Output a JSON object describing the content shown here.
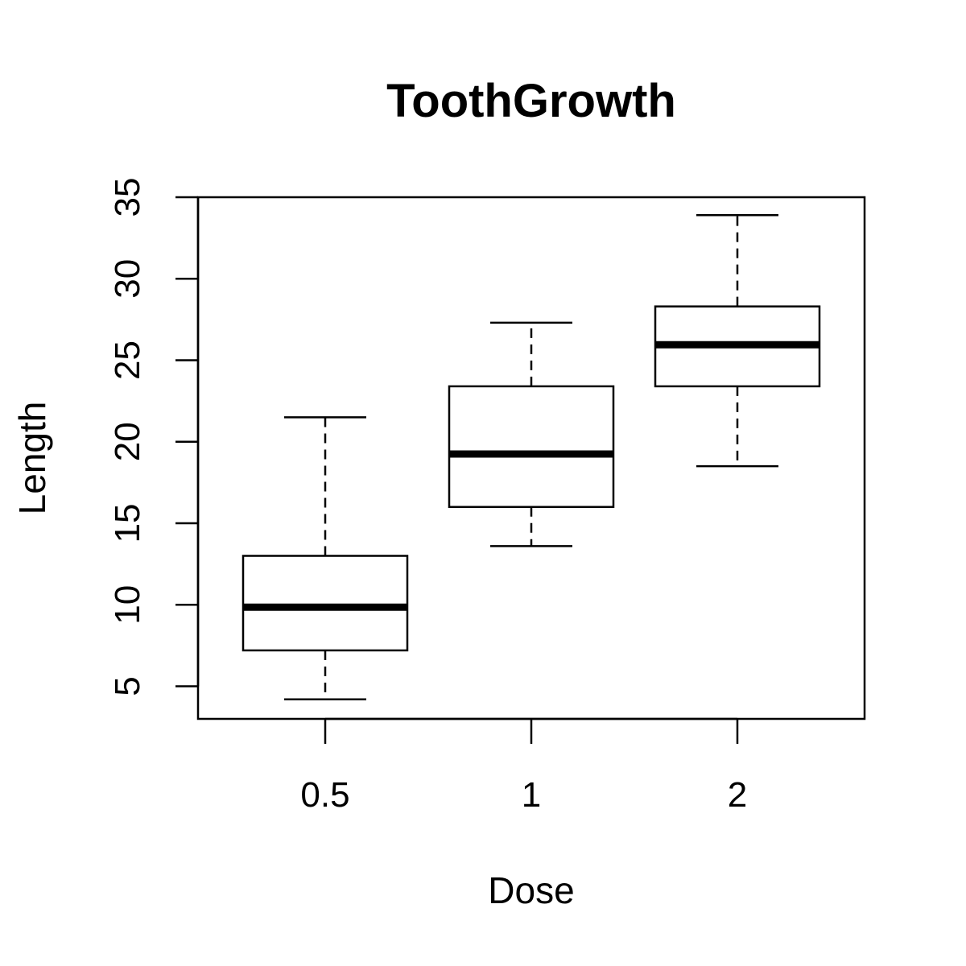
{
  "chart_data": {
    "type": "boxplot",
    "title": "ToothGrowth",
    "xlabel": "Dose",
    "ylabel": "Length",
    "categories": [
      "0.5",
      "1",
      "2"
    ],
    "ylim": [
      3,
      35
    ],
    "yticks": [
      5,
      10,
      15,
      20,
      25,
      30,
      35
    ],
    "boxes": [
      {
        "category": "0.5",
        "whisker_low": 4.2,
        "q1": 7.2,
        "median": 9.85,
        "q3": 13.0,
        "whisker_high": 21.5
      },
      {
        "category": "1",
        "whisker_low": 13.6,
        "q1": 16.0,
        "median": 19.25,
        "q3": 23.4,
        "whisker_high": 27.3
      },
      {
        "category": "2",
        "whisker_low": 18.5,
        "q1": 23.4,
        "median": 25.95,
        "q3": 28.3,
        "whisker_high": 33.9
      }
    ],
    "grid": false,
    "legend": "none"
  }
}
